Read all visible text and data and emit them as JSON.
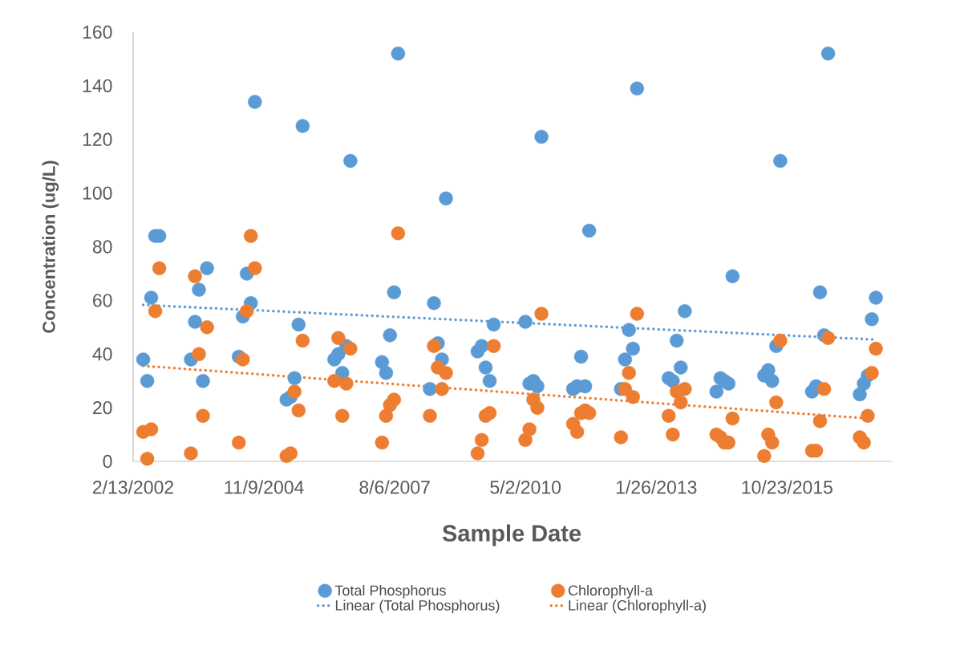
{
  "chart_data": {
    "type": "scatter",
    "xlabel": "Sample Date",
    "ylabel": "Concentration (ug/L)",
    "legend": "bottom",
    "marker": "circle",
    "xlim": [
      "2002-02-13",
      "2018-01-01"
    ],
    "xticks": [
      {
        "value": "2002-02-13",
        "label": "2/13/2002"
      },
      {
        "value": "2004-11-09",
        "label": "11/9/2004"
      },
      {
        "value": "2007-08-06",
        "label": "8/6/2007"
      },
      {
        "value": "2010-05-02",
        "label": "5/2/2010"
      },
      {
        "value": "2013-01-26",
        "label": "1/26/2013"
      },
      {
        "value": "2015-10-23",
        "label": "10/23/2015"
      }
    ],
    "ylim": [
      0,
      160
    ],
    "yticks": [
      0,
      20,
      40,
      60,
      80,
      100,
      120,
      140,
      160
    ],
    "x": [
      "2002-05",
      "2002-06",
      "2002-07",
      "2002-08",
      "2002-09",
      "2003-05",
      "2003-06",
      "2003-07",
      "2003-08",
      "2003-09",
      "2004-05",
      "2004-06",
      "2004-07",
      "2004-08",
      "2004-09",
      "2005-05",
      "2005-06",
      "2005-07",
      "2005-08",
      "2005-09",
      "2006-05",
      "2006-06",
      "2006-07",
      "2006-08",
      "2006-09",
      "2007-05",
      "2007-06",
      "2007-07",
      "2007-08",
      "2007-09",
      "2008-05",
      "2008-06",
      "2008-07",
      "2008-08",
      "2008-09",
      "2009-05",
      "2009-06",
      "2009-07",
      "2009-08",
      "2009-09",
      "2010-05",
      "2010-06",
      "2010-07",
      "2010-08",
      "2010-09",
      "2011-05",
      "2011-06",
      "2011-07",
      "2011-08",
      "2011-09",
      "2012-05",
      "2012-06",
      "2012-07",
      "2012-08",
      "2012-09",
      "2013-05",
      "2013-06",
      "2013-07",
      "2013-08",
      "2013-09",
      "2014-05",
      "2014-06",
      "2014-07",
      "2014-08",
      "2014-09",
      "2015-05",
      "2015-06",
      "2015-07",
      "2015-08",
      "2015-09",
      "2016-05",
      "2016-06",
      "2016-07",
      "2016-08",
      "2016-09",
      "2017-05",
      "2017-06",
      "2017-07",
      "2017-08",
      "2017-09"
    ],
    "series": [
      {
        "name": "Total Phosphorus",
        "color": "#5b9bd5",
        "values": [
          38,
          30,
          61,
          84,
          84,
          38,
          52,
          64,
          30,
          72,
          39,
          54,
          70,
          59,
          134,
          23,
          24,
          31,
          51,
          125,
          38,
          40,
          33,
          43,
          112,
          37,
          33,
          47,
          63,
          152,
          27,
          59,
          44,
          38,
          98,
          41,
          43,
          35,
          30,
          51,
          52,
          29,
          30,
          28,
          121,
          27,
          28,
          39,
          28,
          86,
          27,
          38,
          49,
          42,
          139,
          31,
          30,
          45,
          35,
          56,
          26,
          31,
          30,
          29,
          69,
          32,
          34,
          30,
          43,
          112,
          26,
          28,
          63,
          47,
          152,
          25,
          29,
          32,
          53,
          61
        ]
      },
      {
        "name": "Chlorophyll-a",
        "color": "#ed7d31",
        "values": [
          11,
          1,
          12,
          56,
          72,
          3,
          69,
          40,
          17,
          50,
          7,
          38,
          56,
          84,
          72,
          2,
          3,
          26,
          19,
          45,
          30,
          46,
          17,
          29,
          42,
          7,
          17,
          21,
          23,
          85,
          17,
          43,
          35,
          27,
          33,
          3,
          8,
          17,
          18,
          43,
          8,
          12,
          23,
          20,
          55,
          14,
          11,
          18,
          19,
          18,
          9,
          27,
          33,
          24,
          55,
          17,
          10,
          26,
          22,
          27,
          10,
          9,
          7,
          7,
          16,
          2,
          10,
          7,
          22,
          45,
          4,
          4,
          15,
          27,
          46,
          9,
          7,
          17,
          33,
          42
        ]
      },
      {
        "name": "Linear (Total Phosphorus)",
        "type": "line",
        "line_style": "dotted",
        "marker": "none",
        "color": "#5b9bd5",
        "x": [
          "2002-05",
          "2017-09"
        ],
        "values": [
          58.3,
          45.4
        ]
      },
      {
        "name": "Linear (Chlorophyll-a)",
        "type": "line",
        "line_style": "dotted",
        "marker": "none",
        "color": "#ed7d31",
        "x": [
          "2002-05",
          "2017-09"
        ],
        "values": [
          35.6,
          15.8
        ]
      }
    ]
  }
}
